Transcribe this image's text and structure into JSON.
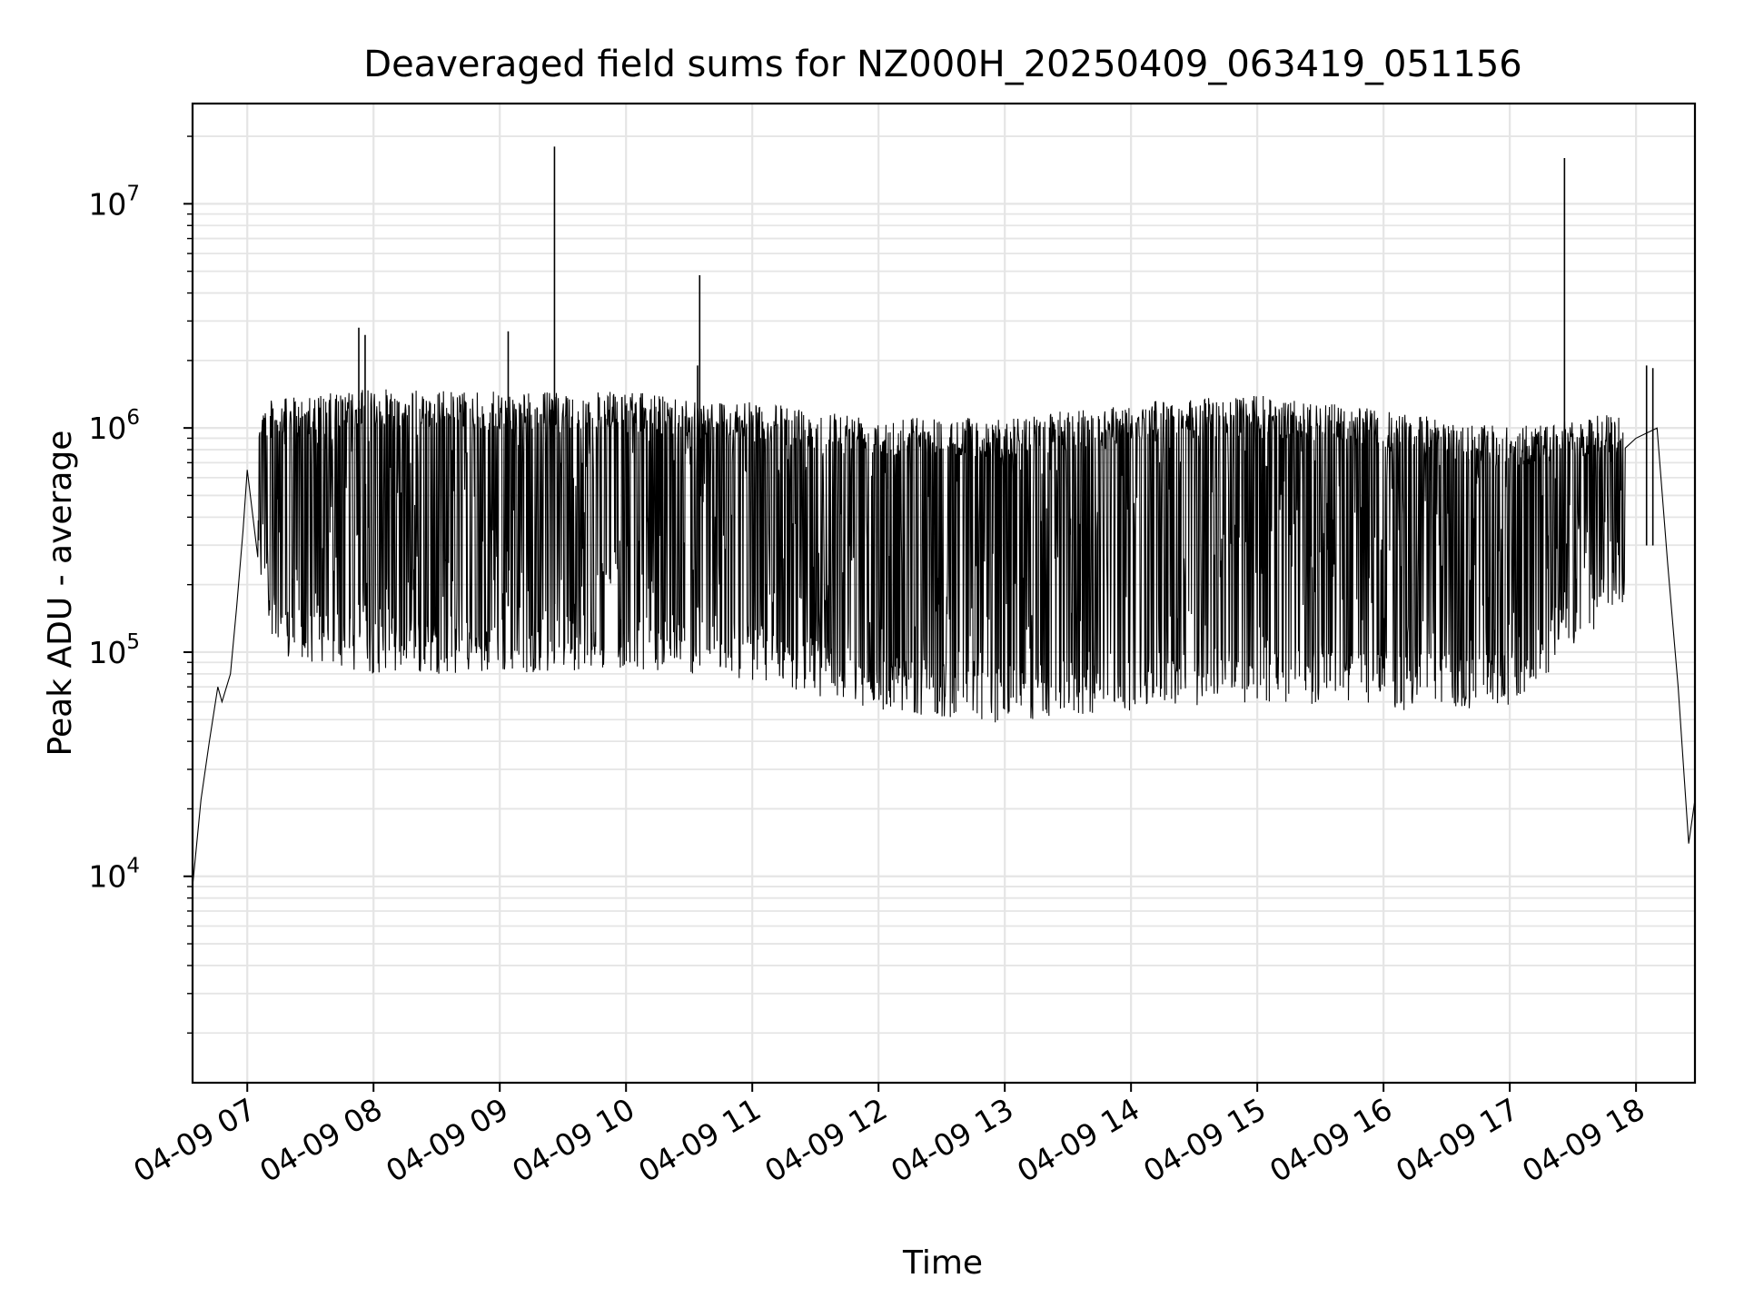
{
  "chart_data": {
    "type": "line",
    "title": "Deaveraged field sums for NZ000H_20250409_063419_051156",
    "xlabel": "Time",
    "ylabel": "Peak ADU - average",
    "yscale": "log",
    "ylim": [
      1200,
      28000000
    ],
    "xlim": [
      "2025-04-09 06:34",
      "2025-04-09 18:28"
    ],
    "grid": "major and minor, light gray",
    "x_tick_labels": [
      "04-09 07",
      "04-09 08",
      "04-09 09",
      "04-09 10",
      "04-09 11",
      "04-09 12",
      "04-09 13",
      "04-09 14",
      "04-09 15",
      "04-09 16",
      "04-09 17",
      "04-09 18"
    ],
    "y_tick_labels": [
      {
        "base": "10",
        "exp": "4",
        "value": 10000
      },
      {
        "base": "10",
        "exp": "5",
        "value": 100000
      },
      {
        "base": "10",
        "exp": "6",
        "value": 1000000
      },
      {
        "base": "10",
        "exp": "7",
        "value": 10000000
      }
    ],
    "line_color": "#000000",
    "series": [
      {
        "points": [
          [
            "2025-04-09 06:34",
            9000
          ],
          [
            "2025-04-09 06:38",
            22000
          ],
          [
            "2025-04-09 06:42",
            40000
          ],
          [
            "2025-04-09 06:46",
            70000
          ],
          [
            "2025-04-09 06:48",
            60000
          ],
          [
            "2025-04-09 06:52",
            80000
          ],
          [
            "2025-04-09 06:55",
            160000
          ],
          [
            "2025-04-09 06:58",
            350000
          ],
          [
            "2025-04-09 07:00",
            650000
          ],
          [
            "2025-04-09 07:05",
            900000
          ],
          [
            "2025-04-09 07:10",
            700000
          ],
          [
            "2025-04-09 07:15",
            450000
          ],
          [
            "2025-04-09 07:20",
            900000
          ],
          [
            "2025-04-09 07:30",
            800000
          ],
          [
            "2025-04-09 08:00",
            900000
          ],
          [
            "2025-04-09 09:00",
            900000
          ],
          [
            "2025-04-09 10:00",
            850000
          ],
          [
            "2025-04-09 11:00",
            650000
          ],
          [
            "2025-04-09 12:00",
            450000
          ],
          [
            "2025-04-09 13:00",
            350000
          ],
          [
            "2025-04-09 14:00",
            400000
          ],
          [
            "2025-04-09 15:00",
            450000
          ],
          [
            "2025-04-09 16:00",
            350000
          ],
          [
            "2025-04-09 17:00",
            350000
          ],
          [
            "2025-04-09 17:45",
            550000
          ],
          [
            "2025-04-09 18:00",
            900000
          ],
          [
            "2025-04-09 18:10",
            1000000
          ],
          [
            "2025-04-09 18:15",
            250000
          ],
          [
            "2025-04-09 18:20",
            70000
          ],
          [
            "2025-04-09 18:25",
            14000
          ],
          [
            "2025-04-09 18:28",
            22000
          ]
        ],
        "envelope_upper": [
          [
            "2025-04-09 07:00",
            1300000
          ],
          [
            "2025-04-09 08:00",
            1500000
          ],
          [
            "2025-04-09 09:00",
            1450000
          ],
          [
            "2025-04-09 10:00",
            1450000
          ],
          [
            "2025-04-09 11:00",
            1300000
          ],
          [
            "2025-04-09 12:00",
            1150000
          ],
          [
            "2025-04-09 13:00",
            1100000
          ],
          [
            "2025-04-09 14:00",
            1300000
          ],
          [
            "2025-04-09 15:00",
            1400000
          ],
          [
            "2025-04-09 16:00",
            1200000
          ],
          [
            "2025-04-09 17:00",
            1000000
          ],
          [
            "2025-04-09 18:00",
            1200000
          ]
        ],
        "envelope_lower": [
          [
            "2025-04-09 07:00",
            350000
          ],
          [
            "2025-04-09 07:15",
            90000
          ],
          [
            "2025-04-09 08:00",
            80000
          ],
          [
            "2025-04-09 09:00",
            80000
          ],
          [
            "2025-04-09 10:00",
            85000
          ],
          [
            "2025-04-09 11:00",
            75000
          ],
          [
            "2025-04-09 12:00",
            55000
          ],
          [
            "2025-04-09 13:00",
            48000
          ],
          [
            "2025-04-09 14:00",
            55000
          ],
          [
            "2025-04-09 15:00",
            60000
          ],
          [
            "2025-04-09 16:00",
            55000
          ],
          [
            "2025-04-09 17:00",
            55000
          ],
          [
            "2025-04-09 17:50",
            150000
          ]
        ],
        "spikes": [
          [
            "2025-04-09 07:53",
            2800000
          ],
          [
            "2025-04-09 07:56",
            2600000
          ],
          [
            "2025-04-09 09:04",
            2700000
          ],
          [
            "2025-04-09 09:26",
            18000000
          ],
          [
            "2025-04-09 10:35",
            4800000
          ],
          [
            "2025-04-09 10:34",
            1900000
          ],
          [
            "2025-04-09 17:26",
            16000000
          ],
          [
            "2025-04-09 18:05",
            1900000
          ],
          [
            "2025-04-09 18:08",
            1850000
          ]
        ]
      }
    ]
  }
}
